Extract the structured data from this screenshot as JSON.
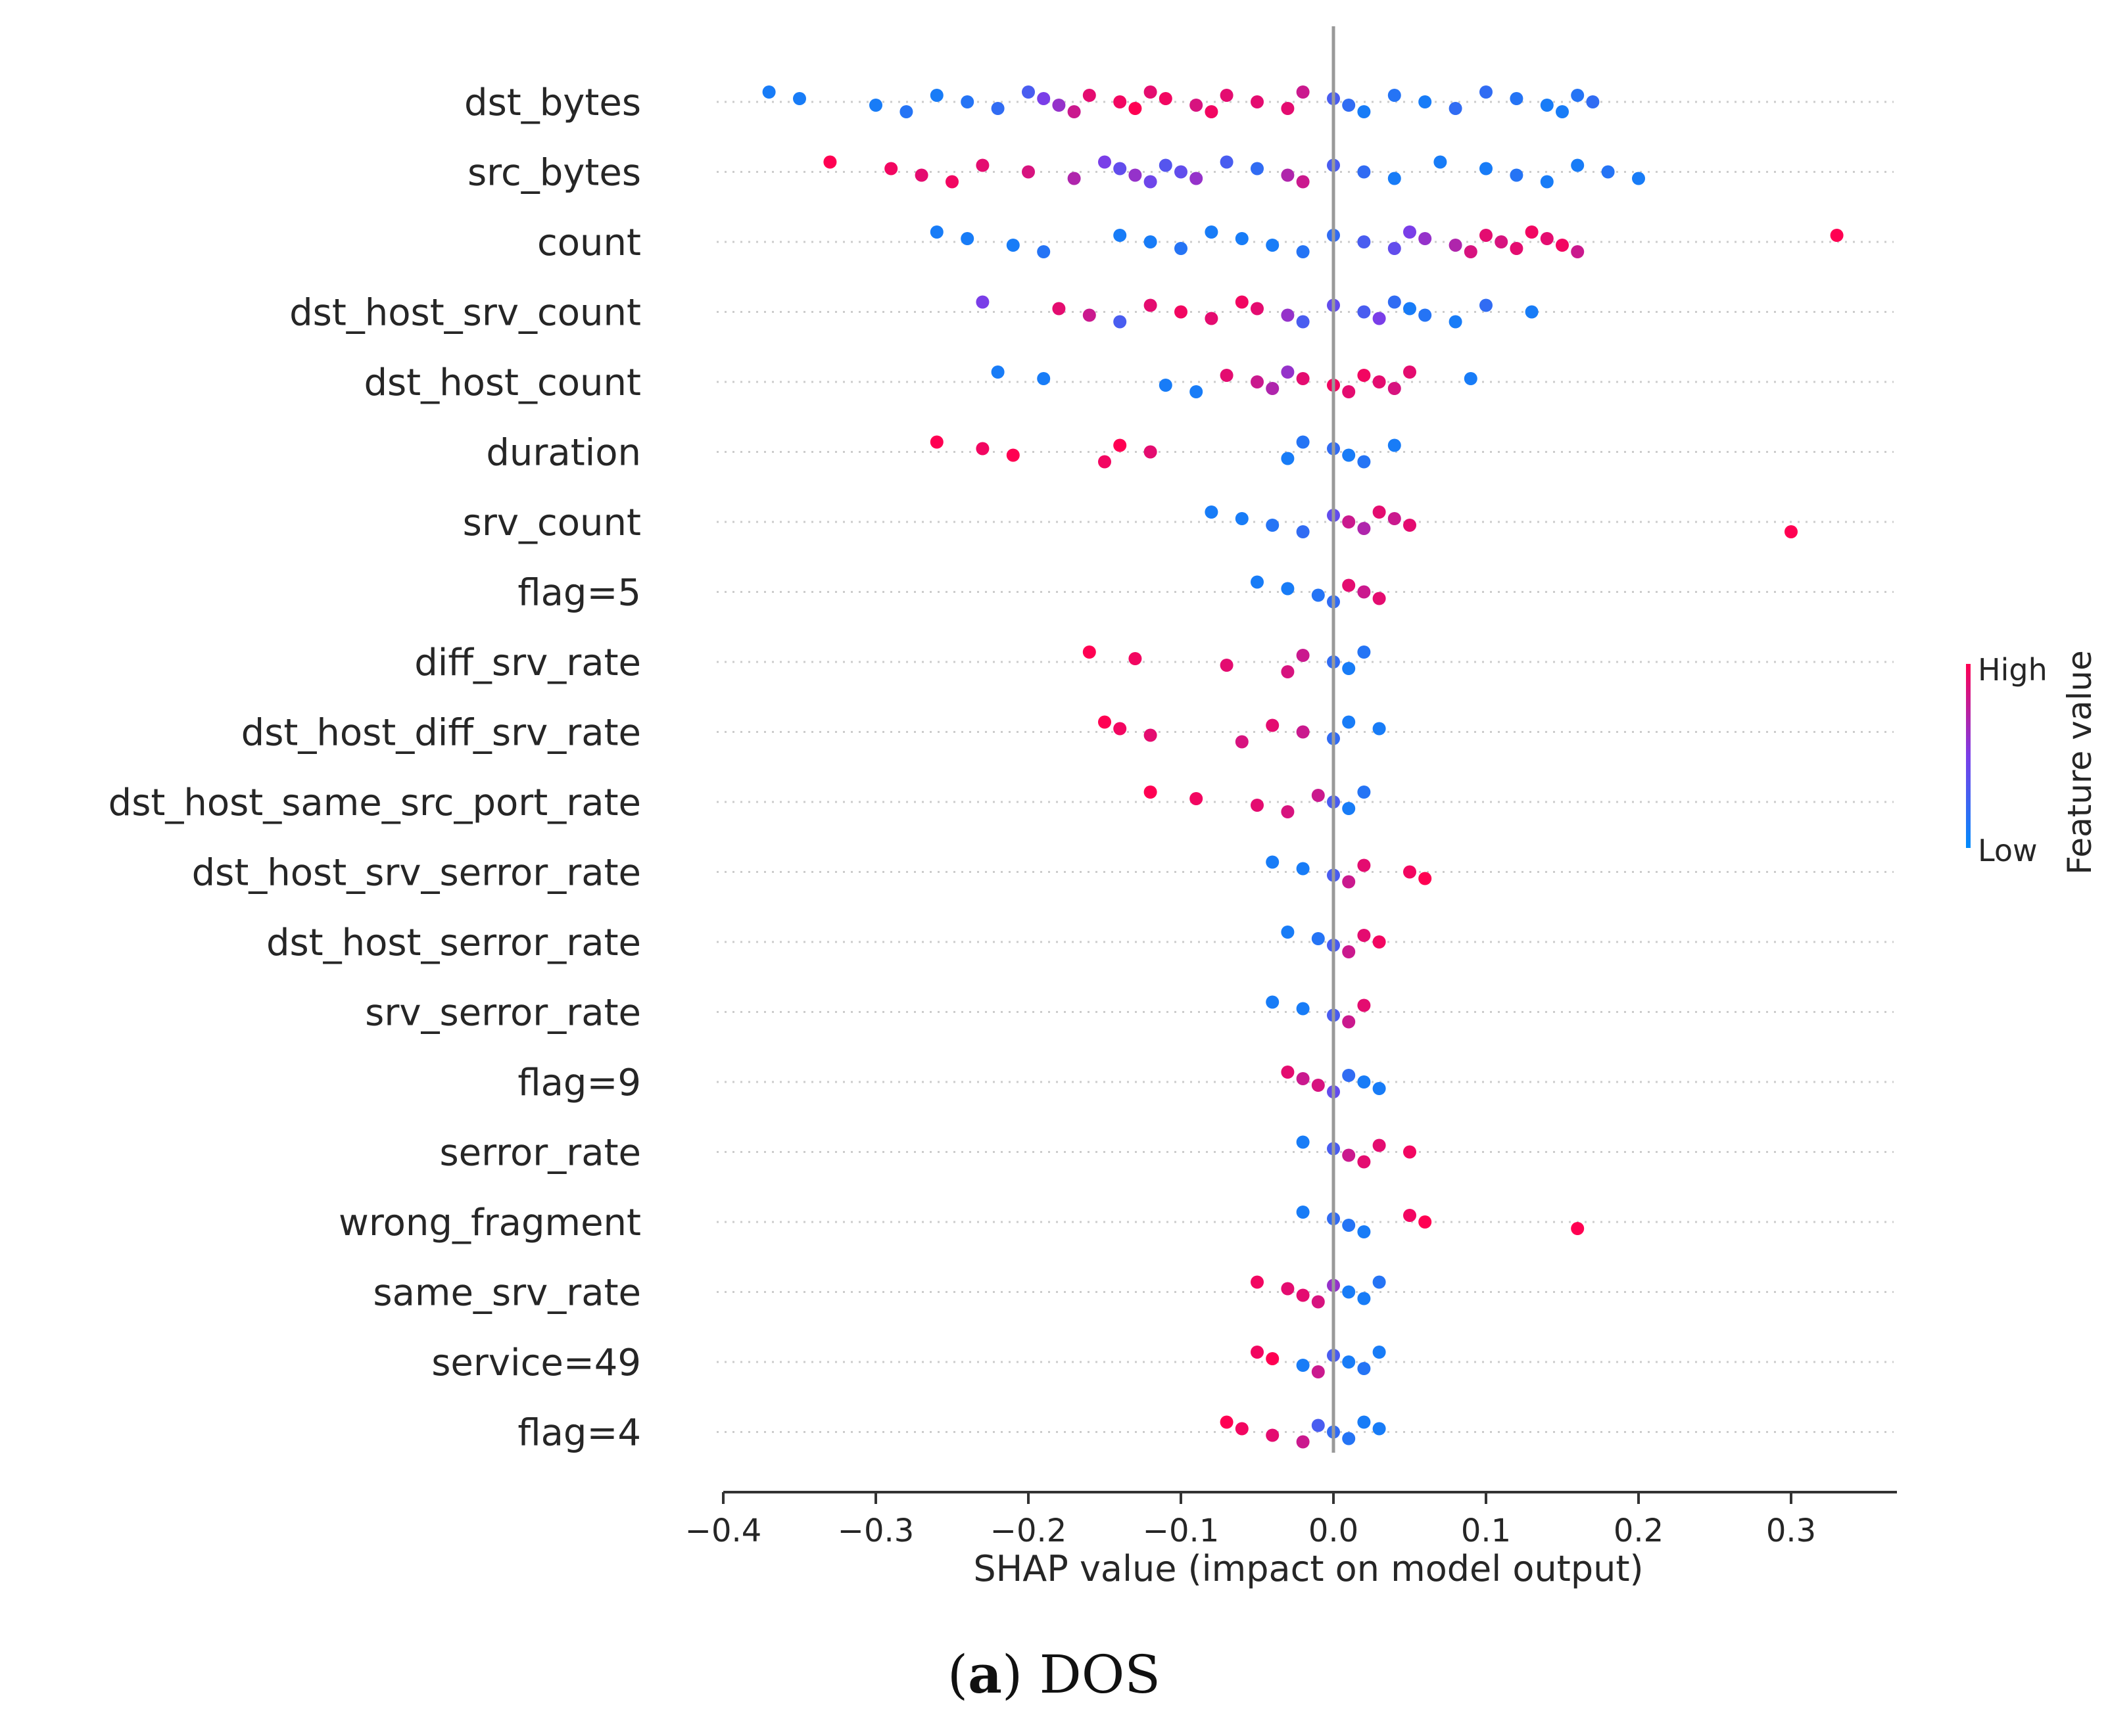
{
  "chart_data": {
    "type": "scatter",
    "subtype": "shap-beeswarm",
    "xlabel": "SHAP value (impact on model output)",
    "xlim": [
      -0.4,
      0.37
    ],
    "xticks": [
      -0.4,
      -0.3,
      -0.2,
      -0.1,
      0.0,
      0.1,
      0.2,
      0.3
    ],
    "xtick_labels": [
      "−0.4",
      "−0.3",
      "−0.2",
      "−0.1",
      "0.0",
      "0.1",
      "0.2",
      "0.3"
    ],
    "colorbar": {
      "high_label": "High",
      "low_label": "Low",
      "title": "Feature value",
      "high_color": "#ff0052",
      "low_color": "#008bfb"
    },
    "features": [
      {
        "name": "dst_bytes",
        "points": [
          [
            -0.37,
            0.1
          ],
          [
            -0.35,
            0.1
          ],
          [
            -0.3,
            0.1
          ],
          [
            -0.28,
            0.15
          ],
          [
            -0.26,
            0.1
          ],
          [
            -0.24,
            0.15
          ],
          [
            -0.22,
            0.2
          ],
          [
            -0.2,
            0.3
          ],
          [
            -0.19,
            0.5
          ],
          [
            -0.18,
            0.6
          ],
          [
            -0.17,
            0.8
          ],
          [
            -0.16,
            0.9
          ],
          [
            -0.14,
            0.95
          ],
          [
            -0.13,
            1
          ],
          [
            -0.12,
            0.9
          ],
          [
            -0.11,
            0.95
          ],
          [
            -0.09,
            0.85
          ],
          [
            -0.08,
            0.95
          ],
          [
            -0.07,
            0.9
          ],
          [
            -0.05,
            0.9
          ],
          [
            -0.03,
            0.9
          ],
          [
            -0.02,
            0.8
          ],
          [
            0.0,
            0.3
          ],
          [
            0.01,
            0.2
          ],
          [
            0.02,
            0.1
          ],
          [
            0.04,
            0.15
          ],
          [
            0.06,
            0.1
          ],
          [
            0.08,
            0.2
          ],
          [
            0.1,
            0.2
          ],
          [
            0.12,
            0.15
          ],
          [
            0.14,
            0.1
          ],
          [
            0.15,
            0.1
          ],
          [
            0.16,
            0.15
          ],
          [
            0.17,
            0.2
          ]
        ]
      },
      {
        "name": "src_bytes",
        "points": [
          [
            -0.33,
            1
          ],
          [
            -0.29,
            0.95
          ],
          [
            -0.27,
            0.9
          ],
          [
            -0.25,
            0.95
          ],
          [
            -0.23,
            0.9
          ],
          [
            -0.2,
            0.85
          ],
          [
            -0.17,
            0.7
          ],
          [
            -0.15,
            0.5
          ],
          [
            -0.14,
            0.4
          ],
          [
            -0.13,
            0.6
          ],
          [
            -0.12,
            0.45
          ],
          [
            -0.11,
            0.35
          ],
          [
            -0.1,
            0.4
          ],
          [
            -0.09,
            0.6
          ],
          [
            -0.07,
            0.3
          ],
          [
            -0.05,
            0.2
          ],
          [
            -0.03,
            0.7
          ],
          [
            -0.02,
            0.8
          ],
          [
            0.0,
            0.3
          ],
          [
            0.02,
            0.2
          ],
          [
            0.04,
            0.1
          ],
          [
            0.07,
            0.1
          ],
          [
            0.1,
            0.1
          ],
          [
            0.12,
            0.15
          ],
          [
            0.14,
            0.1
          ],
          [
            0.16,
            0.1
          ],
          [
            0.18,
            0.15
          ],
          [
            0.2,
            0.1
          ]
        ]
      },
      {
        "name": "count",
        "points": [
          [
            -0.26,
            0.1
          ],
          [
            -0.24,
            0.1
          ],
          [
            -0.21,
            0.1
          ],
          [
            -0.19,
            0.15
          ],
          [
            -0.14,
            0.1
          ],
          [
            -0.12,
            0.1
          ],
          [
            -0.1,
            0.15
          ],
          [
            -0.08,
            0.1
          ],
          [
            -0.06,
            0.1
          ],
          [
            -0.04,
            0.1
          ],
          [
            -0.02,
            0.15
          ],
          [
            0.0,
            0.2
          ],
          [
            0.02,
            0.3
          ],
          [
            0.04,
            0.4
          ],
          [
            0.05,
            0.5
          ],
          [
            0.06,
            0.6
          ],
          [
            0.08,
            0.7
          ],
          [
            0.09,
            0.85
          ],
          [
            0.1,
            0.9
          ],
          [
            0.11,
            0.85
          ],
          [
            0.12,
            0.9
          ],
          [
            0.13,
            0.95
          ],
          [
            0.14,
            0.9
          ],
          [
            0.15,
            0.95
          ],
          [
            0.16,
            0.8
          ],
          [
            0.33,
            1
          ]
        ]
      },
      {
        "name": "dst_host_srv_count",
        "points": [
          [
            -0.23,
            0.5
          ],
          [
            -0.18,
            0.9
          ],
          [
            -0.16,
            0.8
          ],
          [
            -0.14,
            0.3
          ],
          [
            -0.12,
            0.9
          ],
          [
            -0.1,
            0.95
          ],
          [
            -0.08,
            0.9
          ],
          [
            -0.06,
            0.95
          ],
          [
            -0.05,
            0.9
          ],
          [
            -0.03,
            0.6
          ],
          [
            -0.02,
            0.3
          ],
          [
            0.0,
            0.4
          ],
          [
            0.02,
            0.3
          ],
          [
            0.03,
            0.5
          ],
          [
            0.04,
            0.2
          ],
          [
            0.05,
            0.1
          ],
          [
            0.06,
            0.15
          ],
          [
            0.08,
            0.1
          ],
          [
            0.1,
            0.2
          ],
          [
            0.13,
            0.1
          ]
        ]
      },
      {
        "name": "dst_host_count",
        "points": [
          [
            -0.22,
            0.1
          ],
          [
            -0.19,
            0.1
          ],
          [
            -0.11,
            0.1
          ],
          [
            -0.09,
            0.1
          ],
          [
            -0.07,
            0.9
          ],
          [
            -0.05,
            0.8
          ],
          [
            -0.04,
            0.7
          ],
          [
            -0.03,
            0.6
          ],
          [
            -0.02,
            0.9
          ],
          [
            0.0,
            0.95
          ],
          [
            0.01,
            0.9
          ],
          [
            0.02,
            0.95
          ],
          [
            0.03,
            0.9
          ],
          [
            0.04,
            0.85
          ],
          [
            0.05,
            0.9
          ],
          [
            0.09,
            0.1
          ]
        ]
      },
      {
        "name": "duration",
        "points": [
          [
            -0.26,
            1
          ],
          [
            -0.23,
            0.95
          ],
          [
            -0.21,
            1
          ],
          [
            -0.15,
            0.95
          ],
          [
            -0.14,
            1
          ],
          [
            -0.12,
            0.9
          ],
          [
            -0.03,
            0.1
          ],
          [
            -0.02,
            0.15
          ],
          [
            0.0,
            0.2
          ],
          [
            0.01,
            0.1
          ],
          [
            0.02,
            0.15
          ],
          [
            0.04,
            0.1
          ]
        ]
      },
      {
        "name": "srv_count",
        "points": [
          [
            -0.08,
            0.1
          ],
          [
            -0.06,
            0.1
          ],
          [
            -0.04,
            0.15
          ],
          [
            -0.02,
            0.2
          ],
          [
            0.0,
            0.4
          ],
          [
            0.01,
            0.8
          ],
          [
            0.02,
            0.7
          ],
          [
            0.03,
            0.9
          ],
          [
            0.04,
            0.8
          ],
          [
            0.05,
            0.9
          ],
          [
            0.3,
            1
          ]
        ]
      },
      {
        "name": "flag=5",
        "points": [
          [
            -0.05,
            0.1
          ],
          [
            -0.03,
            0.1
          ],
          [
            -0.01,
            0.15
          ],
          [
            0.0,
            0.2
          ],
          [
            0.01,
            0.9
          ],
          [
            0.02,
            0.8
          ],
          [
            0.03,
            0.9
          ]
        ]
      },
      {
        "name": "diff_srv_rate",
        "points": [
          [
            -0.16,
            1
          ],
          [
            -0.13,
            0.95
          ],
          [
            -0.07,
            0.9
          ],
          [
            -0.03,
            0.85
          ],
          [
            -0.02,
            0.8
          ],
          [
            0.0,
            0.2
          ],
          [
            0.01,
            0.1
          ],
          [
            0.02,
            0.15
          ]
        ]
      },
      {
        "name": "dst_host_diff_srv_rate",
        "points": [
          [
            -0.15,
            1
          ],
          [
            -0.14,
            0.95
          ],
          [
            -0.12,
            0.9
          ],
          [
            -0.06,
            0.85
          ],
          [
            -0.04,
            0.9
          ],
          [
            -0.02,
            0.8
          ],
          [
            0.0,
            0.2
          ],
          [
            0.01,
            0.1
          ],
          [
            0.03,
            0.1
          ]
        ]
      },
      {
        "name": "dst_host_same_src_port_rate",
        "points": [
          [
            -0.12,
            1
          ],
          [
            -0.09,
            0.95
          ],
          [
            -0.05,
            0.9
          ],
          [
            -0.03,
            0.85
          ],
          [
            -0.01,
            0.8
          ],
          [
            0.0,
            0.3
          ],
          [
            0.01,
            0.1
          ],
          [
            0.02,
            0.15
          ]
        ]
      },
      {
        "name": "dst_host_srv_serror_rate",
        "points": [
          [
            -0.04,
            0.1
          ],
          [
            -0.02,
            0.1
          ],
          [
            0.0,
            0.3
          ],
          [
            0.01,
            0.8
          ],
          [
            0.02,
            0.9
          ],
          [
            0.05,
            0.95
          ],
          [
            0.06,
            1
          ]
        ]
      },
      {
        "name": "dst_host_serror_rate",
        "points": [
          [
            -0.03,
            0.1
          ],
          [
            -0.01,
            0.15
          ],
          [
            0.0,
            0.3
          ],
          [
            0.01,
            0.8
          ],
          [
            0.02,
            0.9
          ],
          [
            0.03,
            0.95
          ]
        ]
      },
      {
        "name": "srv_serror_rate",
        "points": [
          [
            -0.04,
            0.1
          ],
          [
            -0.02,
            0.1
          ],
          [
            0.0,
            0.3
          ],
          [
            0.01,
            0.8
          ],
          [
            0.02,
            0.9
          ]
        ]
      },
      {
        "name": "flag=9",
        "points": [
          [
            -0.03,
            0.9
          ],
          [
            -0.02,
            0.8
          ],
          [
            -0.01,
            0.85
          ],
          [
            0.0,
            0.4
          ],
          [
            0.01,
            0.2
          ],
          [
            0.02,
            0.1
          ],
          [
            0.03,
            0.1
          ]
        ]
      },
      {
        "name": "serror_rate",
        "points": [
          [
            -0.02,
            0.1
          ],
          [
            0.0,
            0.3
          ],
          [
            0.01,
            0.8
          ],
          [
            0.02,
            0.9
          ],
          [
            0.03,
            0.9
          ],
          [
            0.05,
            0.95
          ]
        ]
      },
      {
        "name": "wrong_fragment",
        "points": [
          [
            -0.02,
            0.1
          ],
          [
            0.0,
            0.2
          ],
          [
            0.01,
            0.15
          ],
          [
            0.02,
            0.1
          ],
          [
            0.05,
            0.95
          ],
          [
            0.06,
            1
          ],
          [
            0.16,
            1
          ]
        ]
      },
      {
        "name": "same_srv_rate",
        "points": [
          [
            -0.05,
            0.95
          ],
          [
            -0.03,
            0.9
          ],
          [
            -0.02,
            0.9
          ],
          [
            -0.01,
            0.85
          ],
          [
            0.0,
            0.6
          ],
          [
            0.01,
            0.1
          ],
          [
            0.02,
            0.1
          ],
          [
            0.03,
            0.15
          ]
        ]
      },
      {
        "name": "service=49",
        "points": [
          [
            -0.05,
            0.95
          ],
          [
            -0.04,
            1
          ],
          [
            -0.02,
            0.1
          ],
          [
            -0.01,
            0.8
          ],
          [
            0.0,
            0.3
          ],
          [
            0.01,
            0.1
          ],
          [
            0.02,
            0.15
          ],
          [
            0.03,
            0.1
          ]
        ]
      },
      {
        "name": "flag=4",
        "points": [
          [
            -0.07,
            1
          ],
          [
            -0.06,
            0.95
          ],
          [
            -0.04,
            0.9
          ],
          [
            -0.02,
            0.8
          ],
          [
            -0.01,
            0.3
          ],
          [
            0.0,
            0.2
          ],
          [
            0.01,
            0.15
          ],
          [
            0.02,
            0.1
          ],
          [
            0.03,
            0.1
          ]
        ]
      }
    ]
  },
  "caption": {
    "letter": "a",
    "text": "DOS"
  }
}
